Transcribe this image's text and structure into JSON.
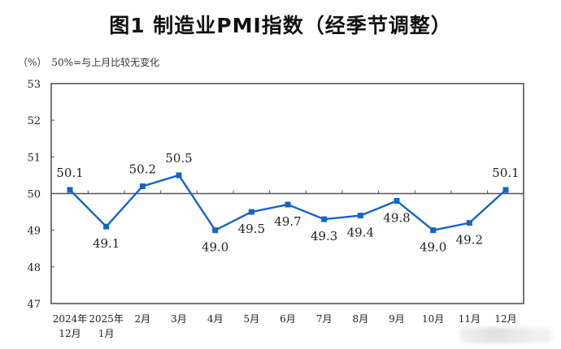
{
  "header": {
    "title": "图1  制造业PMI指数（经季节调整）",
    "unit": "（%）",
    "note": "50%=与上月比较无变化"
  },
  "colors": {
    "series": "#1464C8",
    "axis": "#555555",
    "text": "#222222"
  },
  "chart_data": {
    "type": "line",
    "title": "图1 制造业PMI指数（经季节调整）",
    "subtitle": "50%=与上月比较无变化",
    "ylabel": "（%）",
    "xlabel": "",
    "ylim": [
      47,
      53
    ],
    "yticks": [
      47,
      48,
      49,
      50,
      51,
      52,
      53
    ],
    "reference_line": 50,
    "grid": false,
    "legend": null,
    "categories": [
      "2024年\n12月",
      "2025年\n1月",
      "2月",
      "3月",
      "4月",
      "5月",
      "6月",
      "7月",
      "8月",
      "9月",
      "10月",
      "11月",
      "12月"
    ],
    "category_lines": [
      [
        "2024年",
        "12月"
      ],
      [
        "2025年",
        "1月"
      ],
      [
        "2月"
      ],
      [
        "3月"
      ],
      [
        "4月"
      ],
      [
        "5月"
      ],
      [
        "6月"
      ],
      [
        "7月"
      ],
      [
        "8月"
      ],
      [
        "9月"
      ],
      [
        "10月"
      ],
      [
        "11月"
      ],
      [
        "12月"
      ]
    ],
    "series": [
      {
        "name": "制造业PMI",
        "values": [
          50.1,
          49.1,
          50.2,
          50.5,
          49.0,
          49.5,
          49.7,
          49.3,
          49.4,
          49.8,
          49.0,
          49.2,
          50.1
        ],
        "labels": [
          "50.1",
          "49.1",
          "50.2",
          "50.5",
          "49.0",
          "49.5",
          "49.7",
          "49.3",
          "49.4",
          "49.8",
          "49.0",
          "49.2",
          "50.1"
        ],
        "label_pos": [
          "above",
          "below",
          "above",
          "above",
          "below",
          "below",
          "below",
          "below",
          "below",
          "below",
          "below",
          "below",
          "above"
        ]
      }
    ]
  }
}
